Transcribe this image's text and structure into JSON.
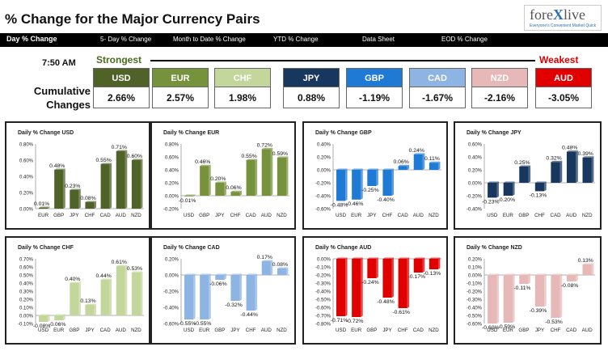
{
  "header": {
    "title": "% Change for the Major Currency Pairs",
    "logo": {
      "brand_prefix": "fore",
      "brand_x": "X",
      "brand_suffix": "live",
      "tagline": "Everyone's Convenient Market Quick"
    }
  },
  "nav": {
    "items": [
      {
        "label": "Day % Change"
      },
      {
        "label": "5- Day % Change"
      },
      {
        "label": "Month to Date % Change"
      },
      {
        "label": "YTD % Change"
      },
      {
        "label": "Data Sheet"
      },
      {
        "label": "EOD % Change"
      }
    ]
  },
  "summary": {
    "time": "7:50 AM",
    "strongest_label": "Strongest",
    "weakest_label": "Weakest",
    "cumulative_label_1": "Cumulative",
    "cumulative_label_2": "Changes",
    "currencies": [
      {
        "code": "USD",
        "value": "2.66%",
        "color": "#4f6228"
      },
      {
        "code": "EUR",
        "value": "2.57%",
        "color": "#76923c"
      },
      {
        "code": "CHF",
        "value": "1.98%",
        "color": "#c3d69b"
      },
      {
        "code": "JPY",
        "value": "0.88%",
        "color": "#17375e"
      },
      {
        "code": "GBP",
        "value": "-1.19%",
        "color": "#1f7ad6"
      },
      {
        "code": "CAD",
        "value": "-1.67%",
        "color": "#8db4e2"
      },
      {
        "code": "NZD",
        "value": "-2.16%",
        "color": "#e6b9b8"
      },
      {
        "code": "AUD",
        "value": "-3.05%",
        "color": "#e00000"
      }
    ]
  },
  "chart_data": [
    {
      "type": "bar",
      "title": "Daily % Change USD",
      "categories": [
        "EUR",
        "GBP",
        "JPY",
        "CHF",
        "CAD",
        "AUD",
        "NZD"
      ],
      "values": [
        0.01,
        0.48,
        0.23,
        0.08,
        0.55,
        0.71,
        0.6
      ],
      "labels": [
        "0.01%",
        "0.48%",
        "0.23%",
        "0.08%",
        "0.55%",
        "0.71%",
        "0.60%"
      ],
      "ylim": [
        0,
        0.8
      ],
      "ytick_step": 0.2,
      "ytick_labels": [
        "0.00%",
        "0.20%",
        "0.40%",
        "0.60%",
        "0.80%"
      ],
      "color": "#4f6228"
    },
    {
      "type": "bar",
      "title": "Daily % Change EUR",
      "categories": [
        "USD",
        "GBP",
        "JPY",
        "CHF",
        "CAD",
        "AUD",
        "NZD"
      ],
      "values": [
        -0.01,
        0.46,
        0.2,
        0.06,
        0.55,
        0.72,
        0.59
      ],
      "labels": [
        "-0.01%",
        "0.46%",
        "0.20%",
        "0.06%",
        "0.55%",
        "0.72%",
        "0.59%"
      ],
      "ylim": [
        -0.2,
        0.8
      ],
      "ytick_step": 0.2,
      "ytick_labels": [
        "-0.20%",
        "0.00%",
        "0.20%",
        "0.40%",
        "0.60%",
        "0.80%"
      ],
      "color": "#76923c"
    },
    {
      "type": "bar",
      "title": "Daily % Change GBP",
      "categories": [
        "USD",
        "EUR",
        "JPY",
        "CHF",
        "CAD",
        "AUD",
        "NZD"
      ],
      "values": [
        -0.48,
        -0.46,
        -0.25,
        -0.4,
        0.06,
        0.24,
        0.11
      ],
      "labels": [
        "-0.48%",
        "-0.46%",
        "-0.25%",
        "-0.40%",
        "0.06%",
        "0.24%",
        "0.11%"
      ],
      "ylim": [
        -0.6,
        0.4
      ],
      "ytick_step": 0.2,
      "ytick_labels": [
        "-0.60%",
        "-0.40%",
        "-0.20%",
        "0.00%",
        "0.20%",
        "0.40%"
      ],
      "color": "#1f7ad6"
    },
    {
      "type": "bar",
      "title": "Daily % Change JPY",
      "categories": [
        "USD",
        "EUR",
        "GBP",
        "CHF",
        "CAD",
        "AUD",
        "NZD"
      ],
      "values": [
        -0.23,
        -0.2,
        0.25,
        -0.13,
        0.32,
        0.48,
        0.39
      ],
      "labels": [
        "-0.23%",
        "-0.20%",
        "0.25%",
        "-0.13%",
        "0.32%",
        "0.48%",
        "0.39%"
      ],
      "ylim": [
        -0.4,
        0.6
      ],
      "ytick_step": 0.2,
      "ytick_labels": [
        "-0.40%",
        "-0.20%",
        "0.00%",
        "0.20%",
        "0.40%",
        "0.60%"
      ],
      "color": "#17375e"
    },
    {
      "type": "bar",
      "title": "Daily % Change CHF",
      "categories": [
        "USD",
        "EUR",
        "GBP",
        "JPY",
        "CAD",
        "AUD",
        "NZD"
      ],
      "values": [
        -0.08,
        -0.06,
        0.4,
        0.13,
        0.44,
        0.61,
        0.53
      ],
      "labels": [
        "-0.08%",
        "-0.06%",
        "0.40%",
        "0.13%",
        "0.44%",
        "0.61%",
        "0.53%"
      ],
      "ylim": [
        -0.1,
        0.7
      ],
      "ytick_step": 0.1,
      "ytick_labels": [
        "-0.10%",
        "0.00%",
        "0.10%",
        "0.20%",
        "0.30%",
        "0.40%",
        "0.50%",
        "0.60%",
        "0.70%"
      ],
      "color": "#c3d69b"
    },
    {
      "type": "bar",
      "title": "Daily % Change CAD",
      "categories": [
        "USD",
        "EUR",
        "GBP",
        "JPY",
        "CHF",
        "AUD",
        "NZD"
      ],
      "values": [
        -0.55,
        -0.55,
        -0.06,
        -0.32,
        -0.44,
        0.17,
        0.08
      ],
      "labels": [
        "-0.55%",
        "-0.55%",
        "-0.06%",
        "-0.32%",
        "-0.44%",
        "0.17%",
        "0.08%"
      ],
      "ylim": [
        -0.6,
        0.2
      ],
      "ytick_step": 0.2,
      "ytick_labels": [
        "-0.60%",
        "-0.40%",
        "-0.20%",
        "0.00%",
        "0.20%"
      ],
      "color": "#8db4e2"
    },
    {
      "type": "bar",
      "title": "Daily % Change AUD",
      "categories": [
        "USD",
        "EUR",
        "GBP",
        "JPY",
        "CHF",
        "CAD",
        "NZD"
      ],
      "values": [
        -0.71,
        -0.72,
        -0.24,
        -0.48,
        -0.61,
        -0.17,
        -0.13
      ],
      "labels": [
        "-0.71%",
        "-0.72%",
        "-0.24%",
        "-0.48%",
        "-0.61%",
        "-0.17%",
        "-0.13%"
      ],
      "ylim": [
        -0.8,
        0.0
      ],
      "ytick_step": 0.1,
      "ytick_labels": [
        "-0.80%",
        "-0.70%",
        "-0.60%",
        "-0.50%",
        "-0.40%",
        "-0.30%",
        "-0.20%",
        "-0.10%",
        "0.00%"
      ],
      "color": "#e00000"
    },
    {
      "type": "bar",
      "title": "Daily % Change NZD",
      "categories": [
        "USD",
        "EUR",
        "GBP",
        "JPY",
        "CHF",
        "CAD",
        "AUD"
      ],
      "values": [
        -0.6,
        -0.59,
        -0.11,
        -0.39,
        -0.53,
        -0.08,
        0.13
      ],
      "labels": [
        "-0.60%",
        "-0.59%",
        "-0.11%",
        "-0.39%",
        "-0.53%",
        "-0.08%",
        "0.13%"
      ],
      "ylim": [
        -0.6,
        0.2
      ],
      "ytick_step": 0.1,
      "ytick_labels": [
        "-0.60%",
        "-0.50%",
        "-0.40%",
        "-0.30%",
        "-0.20%",
        "-0.10%",
        "0.00%",
        "0.10%",
        "0.20%"
      ],
      "color": "#e6b9b8"
    }
  ]
}
